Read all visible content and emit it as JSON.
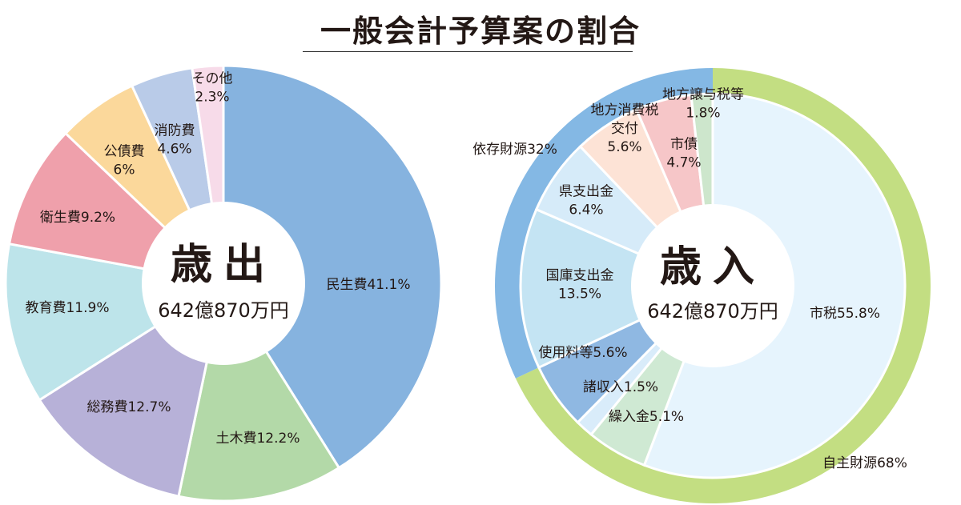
{
  "title": "一般会計予算案の割合",
  "chart_data": [
    {
      "type": "pie",
      "title": "歳出",
      "total_label": "642億870万円",
      "slices": [
        {
          "name": "民生費",
          "value": 41.1,
          "label_lines": [
            "民生費41.1%"
          ],
          "color": "#86b3df"
        },
        {
          "name": "土木費",
          "value": 12.2,
          "label_lines": [
            "土木費12.2%"
          ],
          "color": "#b3d9a8"
        },
        {
          "name": "総務費",
          "value": 12.7,
          "label_lines": [
            "総務費12.7%"
          ],
          "color": "#b7b1d8"
        },
        {
          "name": "教育費",
          "value": 11.9,
          "label_lines": [
            "教育費11.9%"
          ],
          "color": "#bde4ea"
        },
        {
          "name": "衛生費",
          "value": 9.2,
          "label_lines": [
            "衛生費9.2%"
          ],
          "color": "#efa0ab"
        },
        {
          "name": "公債費",
          "value": 6,
          "label_lines": [
            "公債費",
            "6%"
          ],
          "color": "#fbd89b"
        },
        {
          "name": "消防費",
          "value": 4.6,
          "label_lines": [
            "消防費",
            "4.6%"
          ],
          "color": "#b9cbe8"
        },
        {
          "name": "その他",
          "value": 2.3,
          "label_lines": [
            "その他",
            "2.3%"
          ],
          "color": "#f7dbe9"
        }
      ]
    },
    {
      "type": "pie",
      "title": "歳入",
      "total_label": "642億870万円",
      "outer_ring": [
        {
          "name": "自主財源",
          "value": 68,
          "label_lines": [
            "自主財源68%"
          ],
          "color": "#c3de82"
        },
        {
          "name": "依存財源",
          "value": 32,
          "label_lines": [
            "依存財源32%"
          ],
          "color": "#84b8e4"
        }
      ],
      "slices": [
        {
          "name": "市税",
          "value": 55.8,
          "label_lines": [
            "市税55.8%"
          ],
          "color": "#e6f4fd"
        },
        {
          "name": "繰入金",
          "value": 5.1,
          "label_lines": [
            "繰入金5.1%"
          ],
          "color": "#cfe9d3"
        },
        {
          "name": "諸収入",
          "value": 1.5,
          "label_lines": [
            "諸収入1.5%"
          ],
          "color": "#d9ecfa"
        },
        {
          "name": "使用料等",
          "value": 5.6,
          "label_lines": [
            "使用料等5.6%"
          ],
          "color": "#8fb8e2"
        },
        {
          "name": "国庫支出金",
          "value": 13.5,
          "label_lines": [
            "国庫支出金",
            "13.5%"
          ],
          "color": "#c4e4f3"
        },
        {
          "name": "県支出金",
          "value": 6.4,
          "label_lines": [
            "県支出金",
            "6.4%"
          ],
          "color": "#d6ebf9"
        },
        {
          "name": "地方消費税交付",
          "value": 5.6,
          "label_lines": [
            "地方消費税",
            "交付",
            "5.6%"
          ],
          "color": "#fde3d6"
        },
        {
          "name": "市債",
          "value": 4.7,
          "label_lines": [
            "市債",
            "4.7%"
          ],
          "color": "#f6c6c8"
        },
        {
          "name": "地方譲与税等",
          "value": 1.8,
          "label_lines": [
            "地方譲与税等",
            "1.8%"
          ],
          "color": "#cde6cc"
        }
      ]
    }
  ]
}
